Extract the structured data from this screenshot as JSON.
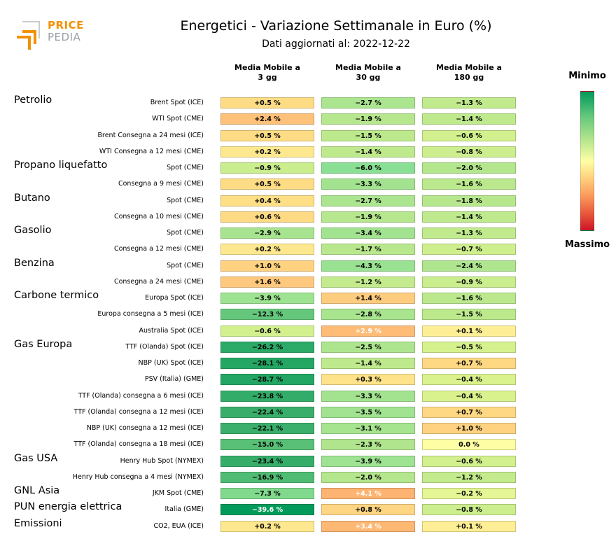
{
  "logo": {
    "top": "PRICE",
    "bottom": "PEDIA",
    "accent_color": "#f29100",
    "gray_color": "#9aa0a6"
  },
  "chart_data": {
    "type": "heatmap",
    "title": "Energetici - Variazione Settimanale in Euro (%)",
    "subtitle": "Dati aggiornati al: 2022-12-22",
    "columns": [
      "Media Mobile a\n3 gg",
      "Media Mobile a\n30 gg",
      "Media Mobile a\n180 gg"
    ],
    "colorbar": {
      "top_label": "Minimo",
      "bottom_label": "Massimo",
      "colors": [
        "#009a5a",
        "#fefea5",
        "#cd1428"
      ]
    },
    "groups": [
      {
        "name": "Petrolio",
        "rows": [
          {
            "label": "Brent Spot (ICE)",
            "values": [
              0.5,
              -2.7,
              -1.3
            ]
          },
          {
            "label": "WTI Spot (CME)",
            "values": [
              2.4,
              -1.9,
              -1.4
            ]
          },
          {
            "label": "Brent Consegna a 24 mesi (ICE)",
            "values": [
              0.5,
              -1.5,
              -0.6
            ]
          },
          {
            "label": "WTI Consegna a 12 mesi (CME)",
            "values": [
              0.2,
              -1.4,
              -0.8
            ]
          }
        ]
      },
      {
        "name": "Propano liquefatto",
        "rows": [
          {
            "label": "Spot (CME)",
            "values": [
              -0.9,
              -6.0,
              -2.0
            ]
          },
          {
            "label": "Consegna a 9 mesi (CME)",
            "values": [
              0.5,
              -3.3,
              -1.6
            ]
          }
        ]
      },
      {
        "name": "Butano",
        "rows": [
          {
            "label": "Spot (CME)",
            "values": [
              0.4,
              -2.7,
              -1.8
            ]
          },
          {
            "label": "Consegna a 10 mesi (CME)",
            "values": [
              0.6,
              -1.9,
              -1.4
            ]
          }
        ]
      },
      {
        "name": "Gasolio",
        "rows": [
          {
            "label": "Spot (CME)",
            "values": [
              -2.9,
              -3.4,
              -1.3
            ]
          },
          {
            "label": "Consegna a 12 mesi (CME)",
            "values": [
              0.2,
              -1.7,
              -0.7
            ]
          }
        ]
      },
      {
        "name": "Benzina",
        "rows": [
          {
            "label": "Spot (CME)",
            "values": [
              1.0,
              -4.3,
              -2.4
            ]
          },
          {
            "label": "Consegna a 24 mesi (CME)",
            "values": [
              1.6,
              -1.2,
              -0.9
            ]
          }
        ]
      },
      {
        "name": "Carbone termico",
        "rows": [
          {
            "label": "Europa Spot (ICE)",
            "values": [
              -3.9,
              1.4,
              -1.6
            ]
          },
          {
            "label": "Europa consegna a 5 mesi (ICE)",
            "values": [
              -12.3,
              -2.8,
              -1.5
            ]
          },
          {
            "label": "Australia Spot (ICE)",
            "values": [
              -0.6,
              2.9,
              0.1
            ]
          }
        ]
      },
      {
        "name": "Gas Europa",
        "rows": [
          {
            "label": "TTF (Olanda) Spot (ICE)",
            "values": [
              -26.2,
              -2.5,
              -0.5
            ]
          },
          {
            "label": "NBP (UK) Spot (ICE)",
            "values": [
              -28.1,
              -1.4,
              0.7
            ]
          },
          {
            "label": "PSV (Italia) (GME)",
            "values": [
              -28.7,
              0.3,
              -0.4
            ]
          },
          {
            "label": "TTF (Olanda) consegna a 6 mesi (ICE)",
            "values": [
              -23.8,
              -3.3,
              -0.4
            ]
          },
          {
            "label": "TTF (Olanda) consegna a 12 mesi (ICE)",
            "values": [
              -22.4,
              -3.5,
              0.7
            ]
          },
          {
            "label": "NBP (UK) consegna a 12 mesi (ICE)",
            "values": [
              -22.1,
              -3.1,
              1.0
            ]
          },
          {
            "label": "TTF (Olanda) consegna a 18 mesi (ICE)",
            "values": [
              -15.0,
              -2.3,
              0.0
            ]
          }
        ]
      },
      {
        "name": "Gas USA",
        "rows": [
          {
            "label": "Henry Hub Spot (NYMEX)",
            "values": [
              -23.4,
              -3.9,
              -0.6
            ]
          },
          {
            "label": "Henry Hub consegna a 4 mesi (NYMEX)",
            "values": [
              -16.9,
              -2.0,
              -1.2
            ]
          }
        ]
      },
      {
        "name": "GNL Asia",
        "rows": [
          {
            "label": "JKM Spot (CME)",
            "values": [
              -7.3,
              4.1,
              -0.2
            ]
          }
        ]
      },
      {
        "name": "PUN energia elettrica",
        "rows": [
          {
            "label": "Italia (GME)",
            "values": [
              -39.6,
              0.8,
              -0.8
            ]
          }
        ]
      },
      {
        "name": "Emissioni",
        "rows": [
          {
            "label": "CO2, EUA (ICE)",
            "values": [
              0.2,
              3.4,
              0.1
            ]
          }
        ]
      }
    ]
  }
}
